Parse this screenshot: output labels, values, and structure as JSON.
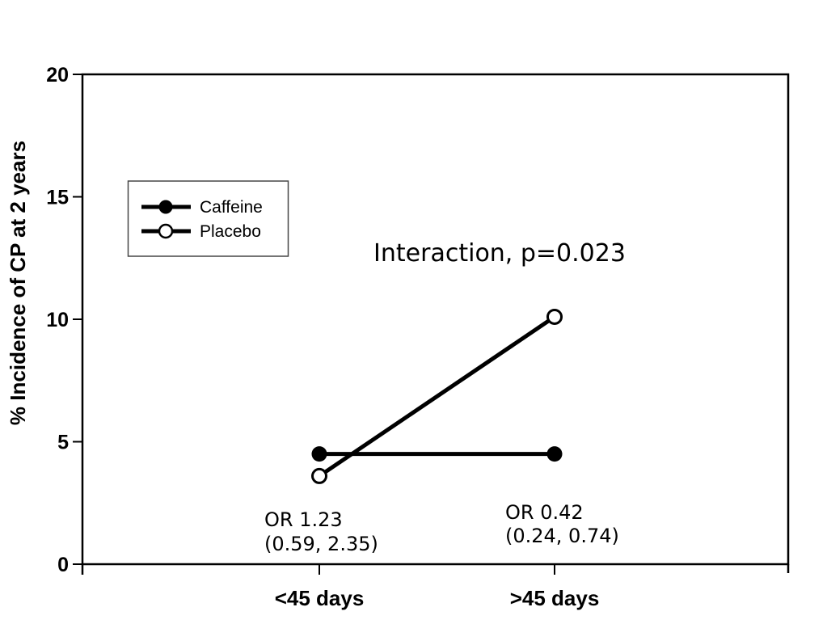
{
  "chart_data": {
    "type": "line",
    "title": "",
    "xlabel": "",
    "ylabel": "% Incidence of CP at 2 years",
    "categories": [
      "<45 days",
      ">45 days"
    ],
    "series": [
      {
        "name": "Caffeine",
        "marker": "filled-circle",
        "color": "#000000",
        "values": [
          4.5,
          4.5
        ]
      },
      {
        "name": "Placebo",
        "marker": "open-circle",
        "color": "#000000",
        "values": [
          3.6,
          10.1
        ]
      }
    ],
    "ylim": [
      0,
      20
    ],
    "yticks": [
      20,
      15,
      10,
      5,
      0
    ],
    "grid": false,
    "legend_position": "upper-left-inside",
    "annotations": [
      {
        "id": "interaction",
        "text": "Interaction, p=0.023"
      },
      {
        "id": "or-lt45",
        "lines": [
          "OR 1.23",
          "(0.59, 2.35)"
        ]
      },
      {
        "id": "or-gt45",
        "lines": [
          "OR 0.42",
          "(0.24, 0.74)"
        ]
      }
    ],
    "colors": {
      "ink": "#000000",
      "background": "#ffffff"
    }
  }
}
